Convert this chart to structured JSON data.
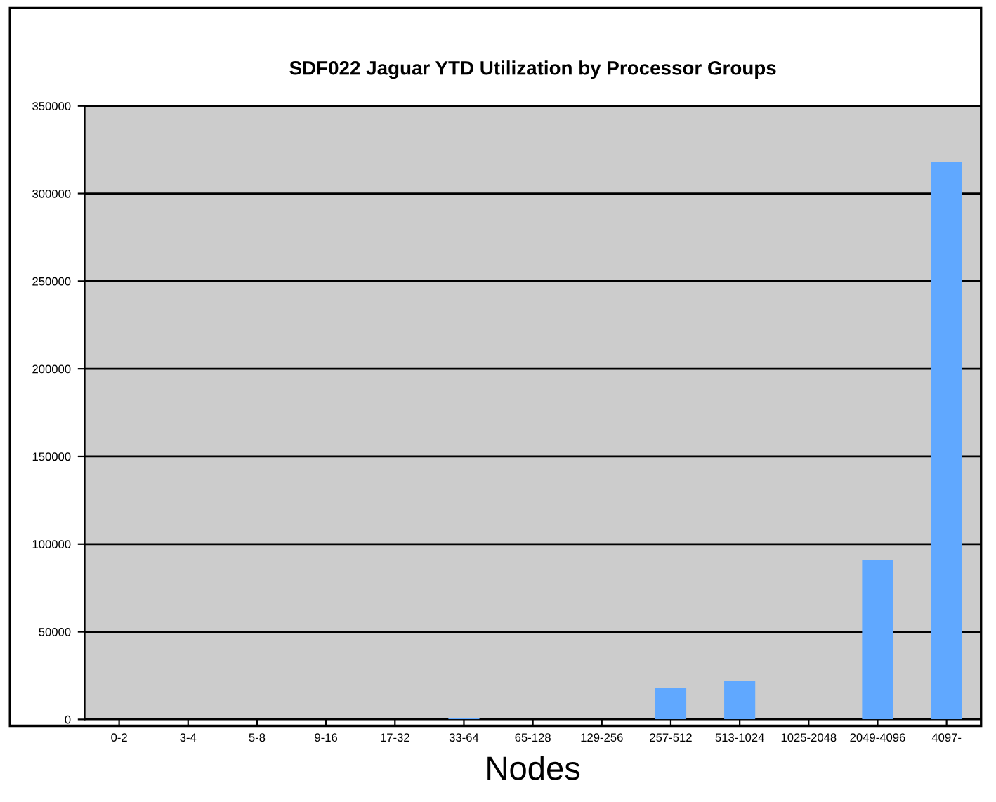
{
  "chart_data": {
    "type": "bar",
    "title": "SDF022 Jaguar YTD Utilization by Processor Groups",
    "xlabel": "Nodes",
    "categories": [
      "0-2",
      "3-4",
      "5-8",
      "9-16",
      "17-32",
      "33-64",
      "65-128",
      "129-256",
      "257-512",
      "513-1024",
      "1025-2048",
      "2049-4096",
      "4097-"
    ],
    "values": [
      0,
      0,
      0,
      0,
      0,
      1000,
      0,
      0,
      18000,
      22000,
      0,
      91000,
      318000
    ],
    "color": "#60a8ff",
    "ylim": [
      0,
      350000
    ],
    "yticks": [
      0,
      50000,
      100000,
      150000,
      200000,
      250000,
      300000,
      350000
    ],
    "grid": "y"
  }
}
